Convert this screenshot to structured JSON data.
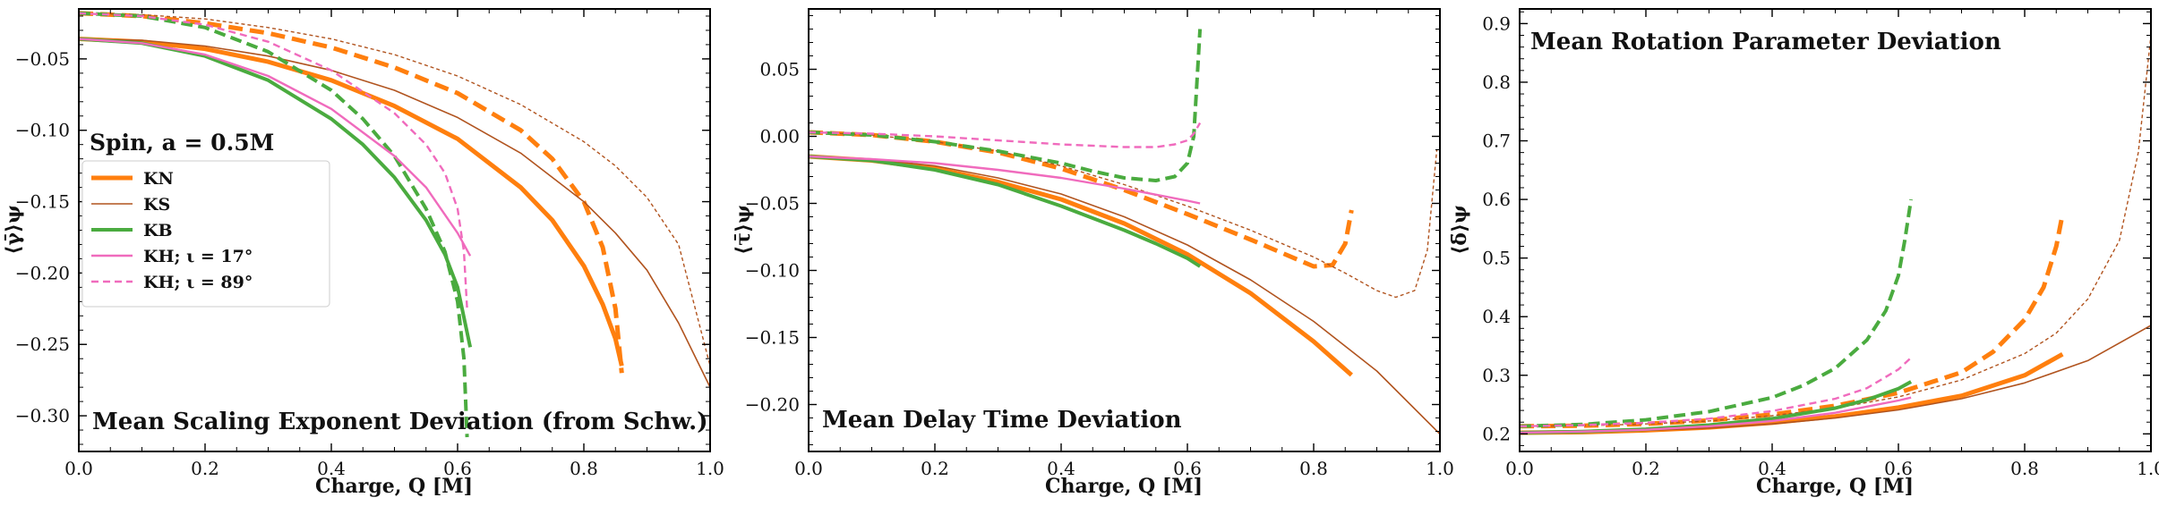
{
  "figure": {
    "spin_label": "Spin,  a = 0.5M",
    "legend": [
      {
        "key": "KN",
        "label": "KN"
      },
      {
        "key": "KS",
        "label": "KS"
      },
      {
        "key": "KB",
        "label": "KB"
      },
      {
        "key": "KH17",
        "label": "KH;  ι = 17°"
      },
      {
        "key": "KH89",
        "label": "KH;  ι = 89°"
      }
    ],
    "styles": {
      "KN": {
        "color": "#ff7f0e",
        "solid_width": 5,
        "dash_width": 5
      },
      "KS": {
        "color": "#b1541f",
        "solid_width": 1.6,
        "dash_width": 1.4
      },
      "KB": {
        "color": "#4aab3f",
        "solid_width": 4,
        "dash_width": 4
      },
      "KH17": {
        "color": "#f06bbd",
        "solid_width": 2.4,
        "dash_width": 2.4
      },
      "KH89": {
        "color": "#f06bbd",
        "solid_width": 2.4,
        "dash_width": 2.4
      }
    }
  },
  "chart_data": [
    {
      "type": "line",
      "title": "Mean Scaling Exponent Deviation (from Schw.)",
      "xlabel": "Charge, Q [M]",
      "ylabel": "⟨γ̄⟩ψ",
      "xlim": [
        0,
        1.0
      ],
      "ylim": [
        -0.325,
        -0.015
      ],
      "xticks": [
        0.0,
        0.2,
        0.4,
        0.6,
        0.8,
        1.0
      ],
      "xtick_labels": [
        "0.0",
        "0.2",
        "0.4",
        "0.6",
        "0.8",
        "1.0"
      ],
      "yticks": [
        -0.3,
        -0.25,
        -0.2,
        -0.15,
        -0.1,
        -0.05
      ],
      "ytick_labels": [
        "−0.30",
        "−0.25",
        "−0.20",
        "−0.15",
        "−0.10",
        "−0.05"
      ],
      "series": [
        {
          "name": "KN",
          "style": "solid",
          "x": [
            0,
            0.1,
            0.2,
            0.3,
            0.4,
            0.5,
            0.6,
            0.7,
            0.75,
            0.8,
            0.83,
            0.85,
            0.86
          ],
          "y": [
            -0.036,
            -0.038,
            -0.043,
            -0.052,
            -0.065,
            -0.083,
            -0.106,
            -0.14,
            -0.163,
            -0.195,
            -0.222,
            -0.246,
            -0.265
          ]
        },
        {
          "name": "KN",
          "style": "dashed",
          "x": [
            0,
            0.1,
            0.2,
            0.3,
            0.4,
            0.5,
            0.6,
            0.7,
            0.75,
            0.8,
            0.83,
            0.85,
            0.86
          ],
          "y": [
            -0.018,
            -0.02,
            -0.025,
            -0.032,
            -0.042,
            -0.056,
            -0.074,
            -0.1,
            -0.12,
            -0.15,
            -0.182,
            -0.225,
            -0.27
          ]
        },
        {
          "name": "KS",
          "style": "solid",
          "x": [
            0,
            0.1,
            0.2,
            0.3,
            0.4,
            0.5,
            0.6,
            0.7,
            0.8,
            0.85,
            0.9,
            0.95,
            1.0
          ],
          "y": [
            -0.036,
            -0.037,
            -0.041,
            -0.048,
            -0.058,
            -0.072,
            -0.091,
            -0.116,
            -0.15,
            -0.172,
            -0.198,
            -0.235,
            -0.28
          ]
        },
        {
          "name": "KS",
          "style": "dashed",
          "x": [
            0,
            0.1,
            0.2,
            0.3,
            0.4,
            0.5,
            0.6,
            0.7,
            0.8,
            0.85,
            0.9,
            0.95,
            1.0
          ],
          "y": [
            -0.018,
            -0.019,
            -0.022,
            -0.028,
            -0.036,
            -0.047,
            -0.062,
            -0.082,
            -0.108,
            -0.125,
            -0.147,
            -0.18,
            -0.265
          ]
        },
        {
          "name": "KB",
          "style": "solid",
          "x": [
            0,
            0.1,
            0.2,
            0.3,
            0.4,
            0.45,
            0.5,
            0.55,
            0.58,
            0.6,
            0.62
          ],
          "y": [
            -0.036,
            -0.039,
            -0.048,
            -0.065,
            -0.092,
            -0.11,
            -0.133,
            -0.163,
            -0.187,
            -0.21,
            -0.252
          ]
        },
        {
          "name": "KB",
          "style": "dashed",
          "x": [
            0,
            0.1,
            0.2,
            0.3,
            0.4,
            0.45,
            0.5,
            0.55,
            0.58,
            0.6,
            0.61,
            0.615
          ],
          "y": [
            -0.018,
            -0.02,
            -0.028,
            -0.045,
            -0.072,
            -0.092,
            -0.118,
            -0.155,
            -0.185,
            -0.22,
            -0.26,
            -0.315
          ]
        },
        {
          "name": "KH17",
          "style": "solid",
          "x": [
            0,
            0.1,
            0.2,
            0.3,
            0.4,
            0.5,
            0.55,
            0.6,
            0.62
          ],
          "y": [
            -0.036,
            -0.039,
            -0.047,
            -0.062,
            -0.085,
            -0.118,
            -0.14,
            -0.172,
            -0.188
          ]
        },
        {
          "name": "KH89",
          "style": "dashed",
          "x": [
            0,
            0.1,
            0.2,
            0.3,
            0.4,
            0.5,
            0.55,
            0.58,
            0.6,
            0.61,
            0.615
          ],
          "y": [
            -0.018,
            -0.02,
            -0.026,
            -0.038,
            -0.058,
            -0.088,
            -0.11,
            -0.13,
            -0.155,
            -0.185,
            -0.225
          ]
        }
      ]
    },
    {
      "type": "line",
      "title": "Mean Delay Time Deviation",
      "xlabel": "Charge, Q [M]",
      "ylabel": "⟨τ̄⟩ψ",
      "xlim": [
        0,
        1.0
      ],
      "ylim": [
        -0.235,
        0.095
      ],
      "xticks": [
        0.0,
        0.2,
        0.4,
        0.6,
        0.8,
        1.0
      ],
      "xtick_labels": [
        "0.0",
        "0.2",
        "0.4",
        "0.6",
        "0.8",
        "1.0"
      ],
      "yticks": [
        -0.2,
        -0.15,
        -0.1,
        -0.05,
        0.0,
        0.05
      ],
      "ytick_labels": [
        "−0.20",
        "−0.15",
        "−0.10",
        "−0.05",
        "0.00",
        "0.05"
      ],
      "series": [
        {
          "name": "KN",
          "style": "solid",
          "x": [
            0,
            0.1,
            0.2,
            0.3,
            0.4,
            0.5,
            0.6,
            0.7,
            0.8,
            0.86
          ],
          "y": [
            -0.015,
            -0.018,
            -0.024,
            -0.034,
            -0.047,
            -0.065,
            -0.088,
            -0.117,
            -0.153,
            -0.178
          ]
        },
        {
          "name": "KN",
          "style": "dashed",
          "x": [
            0,
            0.1,
            0.2,
            0.3,
            0.4,
            0.5,
            0.6,
            0.7,
            0.75,
            0.8,
            0.83,
            0.85,
            0.86
          ],
          "y": [
            0.003,
            0.001,
            -0.004,
            -0.012,
            -0.024,
            -0.04,
            -0.058,
            -0.077,
            -0.087,
            -0.097,
            -0.096,
            -0.08,
            -0.055
          ]
        },
        {
          "name": "KS",
          "style": "solid",
          "x": [
            0,
            0.1,
            0.2,
            0.3,
            0.4,
            0.5,
            0.6,
            0.7,
            0.8,
            0.9,
            1.0
          ],
          "y": [
            -0.015,
            -0.017,
            -0.022,
            -0.031,
            -0.043,
            -0.06,
            -0.081,
            -0.107,
            -0.138,
            -0.175,
            -0.222
          ]
        },
        {
          "name": "KS",
          "style": "dashed",
          "x": [
            0,
            0.1,
            0.2,
            0.3,
            0.4,
            0.5,
            0.6,
            0.7,
            0.8,
            0.85,
            0.9,
            0.93,
            0.96,
            0.98,
            0.995
          ],
          "y": [
            0.003,
            0.001,
            -0.004,
            -0.011,
            -0.022,
            -0.036,
            -0.052,
            -0.07,
            -0.09,
            -0.102,
            -0.115,
            -0.12,
            -0.115,
            -0.085,
            -0.01
          ]
        },
        {
          "name": "KB",
          "style": "solid",
          "x": [
            0,
            0.1,
            0.2,
            0.3,
            0.4,
            0.5,
            0.55,
            0.6,
            0.62
          ],
          "y": [
            -0.015,
            -0.018,
            -0.025,
            -0.036,
            -0.052,
            -0.07,
            -0.08,
            -0.091,
            -0.097
          ]
        },
        {
          "name": "KB",
          "style": "dashed",
          "x": [
            0,
            0.1,
            0.2,
            0.3,
            0.4,
            0.45,
            0.5,
            0.55,
            0.58,
            0.6,
            0.61,
            0.615,
            0.62
          ],
          "y": [
            0.003,
            0.001,
            -0.004,
            -0.011,
            -0.02,
            -0.026,
            -0.031,
            -0.033,
            -0.03,
            -0.02,
            0.0,
            0.04,
            0.08
          ]
        },
        {
          "name": "KH17",
          "style": "solid",
          "x": [
            0,
            0.1,
            0.2,
            0.3,
            0.4,
            0.5,
            0.6,
            0.62
          ],
          "y": [
            -0.015,
            -0.017,
            -0.02,
            -0.025,
            -0.031,
            -0.039,
            -0.048,
            -0.05
          ]
        },
        {
          "name": "KH89",
          "style": "dashed",
          "x": [
            0,
            0.1,
            0.2,
            0.3,
            0.4,
            0.5,
            0.55,
            0.58,
            0.6,
            0.61,
            0.62
          ],
          "y": [
            0.003,
            0.002,
            0.0,
            -0.003,
            -0.006,
            -0.008,
            -0.008,
            -0.006,
            -0.003,
            0.002,
            0.01
          ]
        }
      ]
    },
    {
      "type": "line",
      "title": "Mean Rotation Parameter Deviation",
      "xlabel": "Charge, Q [M]",
      "ylabel": "⟨δ̄⟩ψ",
      "xlim": [
        0,
        1.0
      ],
      "ylim": [
        0.17,
        0.925
      ],
      "xticks": [
        0.0,
        0.2,
        0.4,
        0.6,
        0.8,
        1.0
      ],
      "xtick_labels": [
        "0.0",
        "0.2",
        "0.4",
        "0.6",
        "0.8",
        "1.0"
      ],
      "yticks": [
        0.2,
        0.3,
        0.4,
        0.5,
        0.6,
        0.7,
        0.8,
        0.9
      ],
      "ytick_labels": [
        "0.2",
        "0.3",
        "0.4",
        "0.5",
        "0.6",
        "0.7",
        "0.8",
        "0.9"
      ],
      "series": [
        {
          "name": "KN",
          "style": "solid",
          "x": [
            0,
            0.1,
            0.2,
            0.3,
            0.4,
            0.5,
            0.6,
            0.7,
            0.8,
            0.86
          ],
          "y": [
            0.202,
            0.203,
            0.206,
            0.211,
            0.219,
            0.23,
            0.245,
            0.265,
            0.3,
            0.336
          ]
        },
        {
          "name": "KN",
          "style": "dashed",
          "x": [
            0,
            0.1,
            0.2,
            0.3,
            0.4,
            0.5,
            0.6,
            0.7,
            0.75,
            0.8,
            0.83,
            0.85,
            0.86
          ],
          "y": [
            0.213,
            0.214,
            0.217,
            0.223,
            0.233,
            0.248,
            0.27,
            0.305,
            0.34,
            0.395,
            0.45,
            0.52,
            0.575
          ]
        },
        {
          "name": "KS",
          "style": "solid",
          "x": [
            0,
            0.1,
            0.2,
            0.3,
            0.4,
            0.5,
            0.6,
            0.7,
            0.8,
            0.9,
            1.0
          ],
          "y": [
            0.202,
            0.203,
            0.206,
            0.21,
            0.217,
            0.227,
            0.241,
            0.26,
            0.287,
            0.325,
            0.385
          ]
        },
        {
          "name": "KS",
          "style": "dashed",
          "x": [
            0,
            0.1,
            0.2,
            0.3,
            0.4,
            0.5,
            0.6,
            0.7,
            0.8,
            0.85,
            0.9,
            0.95,
            0.98,
            1.0
          ],
          "y": [
            0.213,
            0.214,
            0.217,
            0.222,
            0.231,
            0.244,
            0.263,
            0.292,
            0.337,
            0.372,
            0.43,
            0.53,
            0.68,
            0.88
          ]
        },
        {
          "name": "KB",
          "style": "solid",
          "x": [
            0,
            0.1,
            0.2,
            0.3,
            0.4,
            0.5,
            0.55,
            0.6,
            0.62
          ],
          "y": [
            0.202,
            0.204,
            0.208,
            0.215,
            0.226,
            0.244,
            0.258,
            0.277,
            0.289
          ]
        },
        {
          "name": "KB",
          "style": "dashed",
          "x": [
            0,
            0.1,
            0.2,
            0.3,
            0.4,
            0.45,
            0.5,
            0.55,
            0.58,
            0.6,
            0.61,
            0.62
          ],
          "y": [
            0.213,
            0.216,
            0.224,
            0.238,
            0.262,
            0.283,
            0.312,
            0.36,
            0.41,
            0.47,
            0.53,
            0.6
          ]
        },
        {
          "name": "KH17",
          "style": "solid",
          "x": [
            0,
            0.1,
            0.2,
            0.3,
            0.4,
            0.5,
            0.6,
            0.62
          ],
          "y": [
            0.202,
            0.204,
            0.207,
            0.213,
            0.222,
            0.236,
            0.257,
            0.262
          ]
        },
        {
          "name": "KH89",
          "style": "dashed",
          "x": [
            0,
            0.1,
            0.2,
            0.3,
            0.4,
            0.5,
            0.55,
            0.6,
            0.62
          ],
          "y": [
            0.213,
            0.215,
            0.219,
            0.226,
            0.239,
            0.26,
            0.278,
            0.31,
            0.33
          ]
        }
      ]
    }
  ]
}
